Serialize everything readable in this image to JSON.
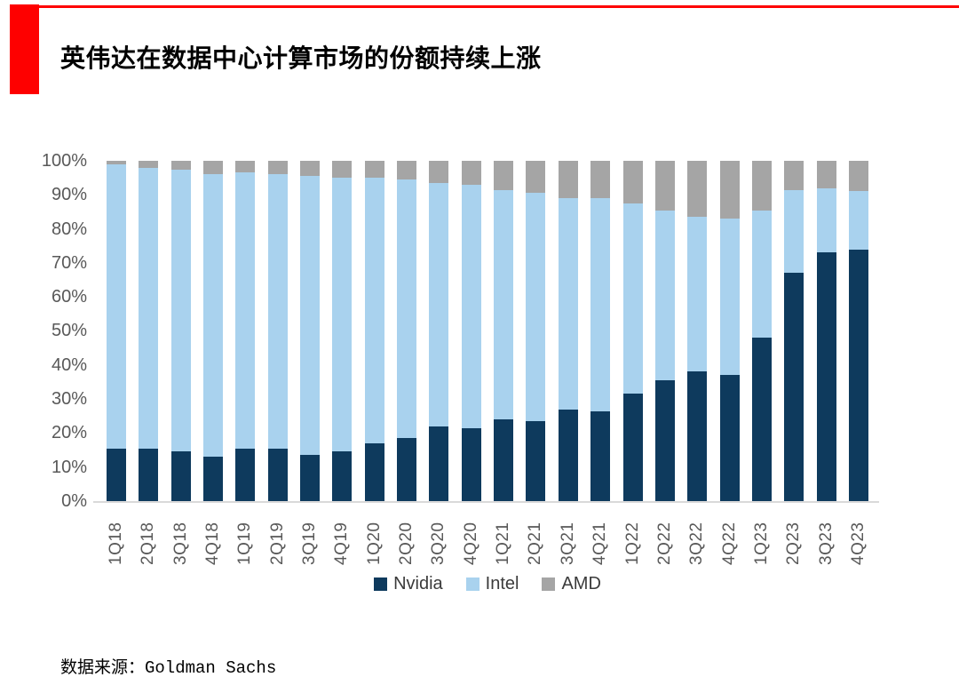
{
  "header": {
    "title": "英伟达在数据中心计算市场的份额持续上涨"
  },
  "chart_data": {
    "type": "bar",
    "stacked": true,
    "title": "英伟达在数据中心计算市场的份额持续上涨",
    "xlabel": "",
    "ylabel": "",
    "ylim": [
      0,
      100
    ],
    "yticks": [
      "100%",
      "90%",
      "80%",
      "70%",
      "60%",
      "50%",
      "40%",
      "30%",
      "20%",
      "10%",
      "0%"
    ],
    "grid": false,
    "legend_position": "bottom",
    "categories": [
      "1Q18",
      "2Q18",
      "3Q18",
      "4Q18",
      "1Q19",
      "2Q19",
      "3Q19",
      "4Q19",
      "1Q20",
      "2Q20",
      "3Q20",
      "4Q20",
      "1Q21",
      "2Q21",
      "3Q21",
      "4Q21",
      "1Q22",
      "2Q22",
      "3Q22",
      "4Q22",
      "1Q23",
      "2Q23",
      "3Q23",
      "4Q23"
    ],
    "series": [
      {
        "name": "Nvidia",
        "color": "#0e3a5d",
        "values": [
          15.5,
          15.5,
          14.5,
          13,
          15.5,
          15.5,
          13.5,
          14.5,
          17,
          18.5,
          22,
          21.5,
          24,
          23.5,
          27,
          26.5,
          31.5,
          35.5,
          38,
          37,
          48,
          67,
          73,
          74
        ]
      },
      {
        "name": "Intel",
        "color": "#a9d2ee",
        "values": [
          83.5,
          82.5,
          83,
          83,
          81,
          80.5,
          82,
          80.5,
          78,
          76,
          71.5,
          71.5,
          67.5,
          67,
          62,
          62.5,
          56,
          50,
          45.5,
          46,
          37.5,
          24.5,
          19,
          17
        ]
      },
      {
        "name": "AMD",
        "color": "#a5a5a5",
        "values": [
          1,
          2,
          2.5,
          4,
          3.5,
          4,
          4.5,
          5,
          5,
          5.5,
          6.5,
          7,
          8.5,
          9.5,
          11,
          11,
          12.5,
          14.5,
          16.5,
          17,
          14.5,
          8.5,
          8,
          9
        ]
      }
    ]
  },
  "footer": {
    "source": "数据来源：Goldman Sachs"
  },
  "accent_color": "#fe0000"
}
